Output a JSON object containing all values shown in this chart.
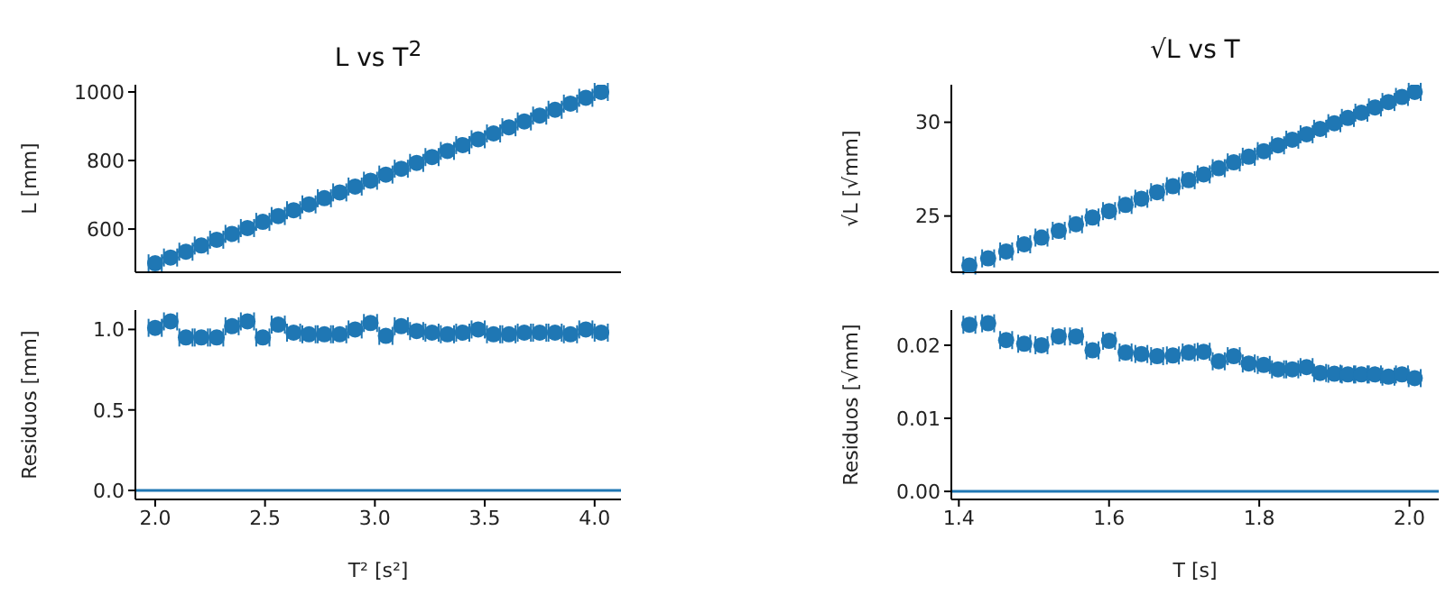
{
  "chart_data": [
    {
      "type": "scatter",
      "title": "L vs T$^{2}$",
      "ylabel": "L [mm]",
      "marker": "circle",
      "tick_labels": "y",
      "xlim": [
        1.91,
        4.12
      ],
      "xticks": [
        2,
        2.5,
        3,
        3.5,
        4
      ],
      "ylim": [
        474,
        1021
      ],
      "yticks": [
        600,
        800,
        1000
      ],
      "x": [
        2.0,
        2.07,
        2.14,
        2.21,
        2.28,
        2.35,
        2.42,
        2.49,
        2.56,
        2.63,
        2.7,
        2.77,
        2.84,
        2.91,
        2.98,
        3.05,
        3.12,
        3.19,
        3.26,
        3.33,
        3.4,
        3.47,
        3.54,
        3.61,
        3.68,
        3.75,
        3.82,
        3.89,
        3.96,
        4.03
      ],
      "series": [
        {
          "color": "#1f77b4",
          "values": [
            500,
            517,
            534,
            552,
            569,
            586,
            603,
            621,
            638,
            655,
            672,
            690,
            707,
            724,
            741,
            759,
            776,
            793,
            810,
            828,
            845,
            862,
            879,
            897,
            914,
            931,
            948,
            966,
            983,
            1000
          ],
          "xerrors": [
            0.03,
            0.03,
            0.03,
            0.03,
            0.03,
            0.03,
            0.03,
            0.03,
            0.03,
            0.03,
            0.03,
            0.03,
            0.03,
            0.03,
            0.03,
            0.03,
            0.03,
            0.03,
            0.03,
            0.03,
            0.03,
            0.03,
            0.03,
            0.03,
            0.03,
            0.03,
            0.03,
            0.03,
            0.03,
            0.03
          ]
        }
      ]
    },
    {
      "type": "scatter",
      "xlabel": "T² [s²]",
      "ylabel": "Residuos [mm]",
      "marker": "circle",
      "xlim": [
        1.91,
        4.12
      ],
      "xticks": [
        {
          "value": 2,
          "label": "2.0"
        },
        2.5,
        {
          "value": 3,
          "label": "3.0"
        },
        3.5,
        {
          "value": 4,
          "label": "4.0"
        }
      ],
      "ylim": [
        -0.056,
        1.12
      ],
      "yticks": [
        {
          "value": 0,
          "label": "0.0"
        },
        0.5,
        {
          "value": 1,
          "label": "1.0"
        }
      ],
      "x": [
        2.0,
        2.07,
        2.14,
        2.21,
        2.28,
        2.35,
        2.42,
        2.49,
        2.56,
        2.63,
        2.7,
        2.77,
        2.84,
        2.91,
        2.98,
        3.05,
        3.12,
        3.19,
        3.26,
        3.33,
        3.4,
        3.47,
        3.54,
        3.61,
        3.68,
        3.75,
        3.82,
        3.89,
        3.96,
        4.03
      ],
      "series": [
        {
          "color": "#1f77b4",
          "values": [
            1.01,
            1.05,
            0.95,
            0.95,
            0.95,
            1.02,
            1.05,
            0.95,
            1.03,
            0.98,
            0.97,
            0.97,
            0.97,
            1.0,
            1.04,
            0.96,
            1.02,
            0.99,
            0.98,
            0.97,
            0.98,
            1.0,
            0.97,
            0.97,
            0.98,
            0.98,
            0.98,
            0.97,
            1.0,
            0.98
          ],
          "xerrors": [
            0.03,
            0.03,
            0.03,
            0.03,
            0.03,
            0.03,
            0.03,
            0.03,
            0.03,
            0.03,
            0.03,
            0.03,
            0.03,
            0.03,
            0.03,
            0.03,
            0.03,
            0.03,
            0.03,
            0.03,
            0.03,
            0.03,
            0.03,
            0.03,
            0.03,
            0.03,
            0.03,
            0.03,
            0.03,
            0.03
          ]
        }
      ],
      "ref_lines": [
        {
          "axis": "y",
          "value": 0,
          "color": "#1f77b4"
        }
      ]
    },
    {
      "type": "scatter",
      "title": "√L vs T",
      "ylabel": "√L [√mm]",
      "marker": "circle",
      "tick_labels": "y",
      "xlim": [
        1.39,
        2.039
      ],
      "xticks": [
        1.4,
        1.6,
        1.8,
        2
      ],
      "ylim": [
        22,
        32
      ],
      "yticks": [
        25,
        30
      ],
      "x": [
        1.414,
        1.439,
        1.463,
        1.487,
        1.51,
        1.533,
        1.556,
        1.578,
        1.6,
        1.622,
        1.643,
        1.664,
        1.685,
        1.706,
        1.726,
        1.746,
        1.766,
        1.786,
        1.806,
        1.825,
        1.844,
        1.863,
        1.881,
        1.9,
        1.918,
        1.936,
        1.954,
        1.972,
        1.99,
        2.007
      ],
      "series": [
        {
          "color": "#1f77b4",
          "values": [
            22.36,
            22.74,
            23.11,
            23.49,
            23.85,
            24.21,
            24.56,
            24.92,
            25.26,
            25.59,
            25.92,
            26.27,
            26.59,
            26.91,
            27.22,
            27.55,
            27.86,
            28.16,
            28.46,
            28.77,
            29.07,
            29.36,
            29.65,
            29.95,
            30.23,
            30.51,
            30.79,
            31.08,
            31.35,
            31.62
          ],
          "xerrors": [
            0.008,
            0.008,
            0.008,
            0.008,
            0.008,
            0.008,
            0.008,
            0.008,
            0.008,
            0.008,
            0.008,
            0.008,
            0.008,
            0.008,
            0.008,
            0.008,
            0.008,
            0.008,
            0.008,
            0.008,
            0.008,
            0.008,
            0.008,
            0.008,
            0.008,
            0.008,
            0.008,
            0.008,
            0.008,
            0.008
          ]
        }
      ]
    },
    {
      "type": "scatter",
      "xlabel": "T [s]",
      "ylabel": "Residuos [√mm]",
      "marker": "circle",
      "xlim": [
        1.39,
        2.039
      ],
      "xticks": [
        1.4,
        1.6,
        1.8,
        {
          "value": 2,
          "label": "2.0"
        }
      ],
      "ylim": [
        -0.0011,
        0.0248
      ],
      "yticks": [
        {
          "value": 0,
          "label": "0.00"
        },
        0.01,
        {
          "value": 0.02,
          "label": "0.02"
        }
      ],
      "x": [
        1.414,
        1.439,
        1.463,
        1.487,
        1.51,
        1.533,
        1.556,
        1.578,
        1.6,
        1.622,
        1.643,
        1.664,
        1.685,
        1.706,
        1.726,
        1.746,
        1.766,
        1.786,
        1.806,
        1.825,
        1.844,
        1.863,
        1.881,
        1.9,
        1.918,
        1.936,
        1.954,
        1.972,
        1.99,
        2.007
      ],
      "series": [
        {
          "color": "#1f77b4",
          "values": [
            0.0228,
            0.023,
            0.0207,
            0.0202,
            0.02,
            0.0212,
            0.0212,
            0.0193,
            0.0206,
            0.019,
            0.0188,
            0.0185,
            0.0186,
            0.019,
            0.0191,
            0.0178,
            0.0185,
            0.0175,
            0.0173,
            0.0167,
            0.0167,
            0.017,
            0.0162,
            0.0161,
            0.016,
            0.016,
            0.016,
            0.0157,
            0.016,
            0.0155
          ],
          "xerrors": [
            0.008,
            0.008,
            0.008,
            0.008,
            0.008,
            0.008,
            0.008,
            0.008,
            0.008,
            0.008,
            0.008,
            0.008,
            0.008,
            0.008,
            0.008,
            0.008,
            0.008,
            0.008,
            0.008,
            0.008,
            0.008,
            0.008,
            0.008,
            0.008,
            0.008,
            0.008,
            0.008,
            0.008,
            0.008,
            0.008
          ]
        }
      ],
      "ref_lines": [
        {
          "axis": "y",
          "value": 0,
          "color": "#1f77b4"
        }
      ]
    }
  ]
}
